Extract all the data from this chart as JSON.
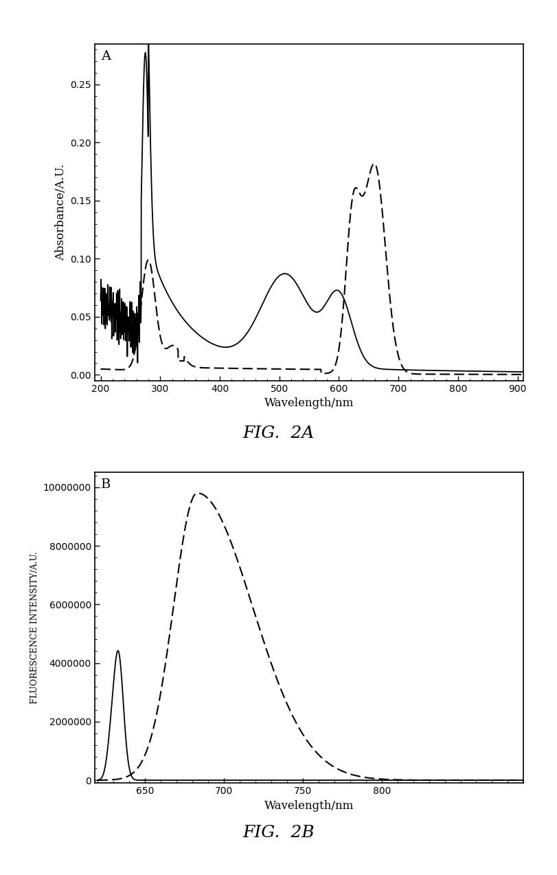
{
  "fig_width": 8.11,
  "fig_height": 12.73,
  "background_color": "#ffffff",
  "panel_A_label": "A",
  "panel_A_ylabel": "Absorbance/A.U.",
  "panel_A_xlabel": "Wavelength/nm",
  "panel_A_xlim": [
    190,
    910
  ],
  "panel_A_ylim": [
    -0.005,
    0.285
  ],
  "panel_A_xticks": [
    200,
    300,
    400,
    500,
    600,
    700,
    800,
    900
  ],
  "panel_A_yticks": [
    0.0,
    0.05,
    0.1,
    0.15,
    0.2,
    0.25
  ],
  "fig2a_label": "FIG.  2A",
  "panel_B_label": "B",
  "panel_B_ylabel": "FLUORESCENCE INTENSITY/A.U.",
  "panel_B_xlabel": "Wavelength/nm",
  "panel_B_xlim": [
    618,
    890
  ],
  "panel_B_ylim": [
    -100000,
    10500000
  ],
  "panel_B_xticks": [
    650,
    700,
    750,
    800
  ],
  "panel_B_yticks": [
    0,
    2000000,
    4000000,
    6000000,
    8000000,
    10000000
  ],
  "fig2b_label": "FIG.  2B"
}
